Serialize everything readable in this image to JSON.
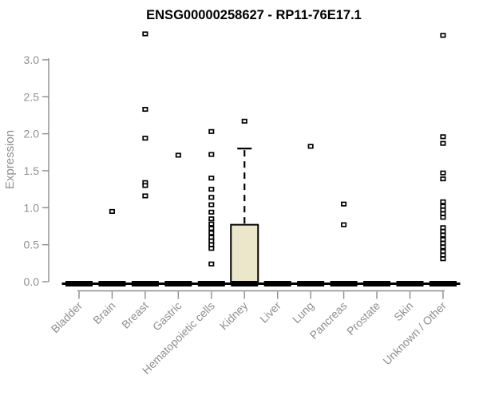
{
  "chart_data": {
    "type": "boxplot",
    "title": "ENSG00000258627 - RP11-76E17.1",
    "ylabel": "Expression",
    "xlabel": "",
    "ylim": [
      0,
      3.4
    ],
    "yticks": [
      0.0,
      0.5,
      1.0,
      1.5,
      2.0,
      2.5,
      3.0
    ],
    "grid": false,
    "legend": "none",
    "categories": [
      "Bladder",
      "Brain",
      "Breast",
      "Gastric",
      "Hematopoietic cells",
      "Kidney",
      "Liver",
      "Lung",
      "Pancreas",
      "Prostate",
      "Skin",
      "Unknown / Other"
    ],
    "boxes": [
      {
        "category": "Bladder",
        "q1": 0,
        "median": 0,
        "q3": 0,
        "whisker_low": 0,
        "whisker_high": 0,
        "outliers": []
      },
      {
        "category": "Brain",
        "q1": 0,
        "median": 0,
        "q3": 0,
        "whisker_low": 0,
        "whisker_high": 0,
        "outliers": [
          0.95
        ]
      },
      {
        "category": "Breast",
        "q1": 0,
        "median": 0,
        "q3": 0,
        "whisker_low": 0,
        "whisker_high": 0,
        "outliers": [
          3.35,
          2.33,
          1.94,
          1.34,
          1.3,
          1.16
        ]
      },
      {
        "category": "Gastric",
        "q1": 0,
        "median": 0,
        "q3": 0,
        "whisker_low": 0,
        "whisker_high": 0,
        "outliers": [
          1.71
        ]
      },
      {
        "category": "Hematopoietic cells",
        "q1": 0,
        "median": 0,
        "q3": 0,
        "whisker_low": 0,
        "whisker_high": 0,
        "outliers": [
          2.03,
          1.72,
          1.4,
          1.25,
          1.14,
          1.04,
          0.94,
          0.85,
          0.78,
          0.72,
          0.66,
          0.6,
          0.55,
          0.5,
          0.45,
          0.24
        ]
      },
      {
        "category": "Kidney",
        "q1": 0,
        "median": 0,
        "q3": 0.77,
        "whisker_low": 0,
        "whisker_high": 1.8,
        "outliers": [
          2.17
        ]
      },
      {
        "category": "Liver",
        "q1": 0,
        "median": 0,
        "q3": 0,
        "whisker_low": 0,
        "whisker_high": 0,
        "outliers": []
      },
      {
        "category": "Lung",
        "q1": 0,
        "median": 0,
        "q3": 0,
        "whisker_low": 0,
        "whisker_high": 0,
        "outliers": [
          1.83
        ]
      },
      {
        "category": "Pancreas",
        "q1": 0,
        "median": 0,
        "q3": 0,
        "whisker_low": 0,
        "whisker_high": 0,
        "outliers": [
          1.05,
          0.77
        ]
      },
      {
        "category": "Prostate",
        "q1": 0,
        "median": 0,
        "q3": 0,
        "whisker_low": 0,
        "whisker_high": 0,
        "outliers": []
      },
      {
        "category": "Skin",
        "q1": 0,
        "median": 0,
        "q3": 0,
        "whisker_low": 0,
        "whisker_high": 0,
        "outliers": []
      },
      {
        "category": "Unknown / Other",
        "q1": 0,
        "median": 0,
        "q3": 0,
        "whisker_low": 0,
        "whisker_high": 0,
        "outliers": [
          3.33,
          1.96,
          1.87,
          1.47,
          1.39,
          1.08,
          1.02,
          0.97,
          0.92,
          0.87,
          0.73,
          0.68,
          0.63,
          0.57,
          0.52,
          0.47,
          0.41,
          0.36,
          0.31
        ]
      }
    ],
    "colors": {
      "background": "#ffffff",
      "box_fill": "#ECE7CB",
      "box_stroke": "#000000",
      "whisker": "#000000",
      "zero_bar": "#000000",
      "outlier_stroke": "#000000",
      "outlier_fill": "#ffffff",
      "axis": "#8c8c8c",
      "tick_label": "#8f8f8f",
      "title": "#000000"
    }
  }
}
